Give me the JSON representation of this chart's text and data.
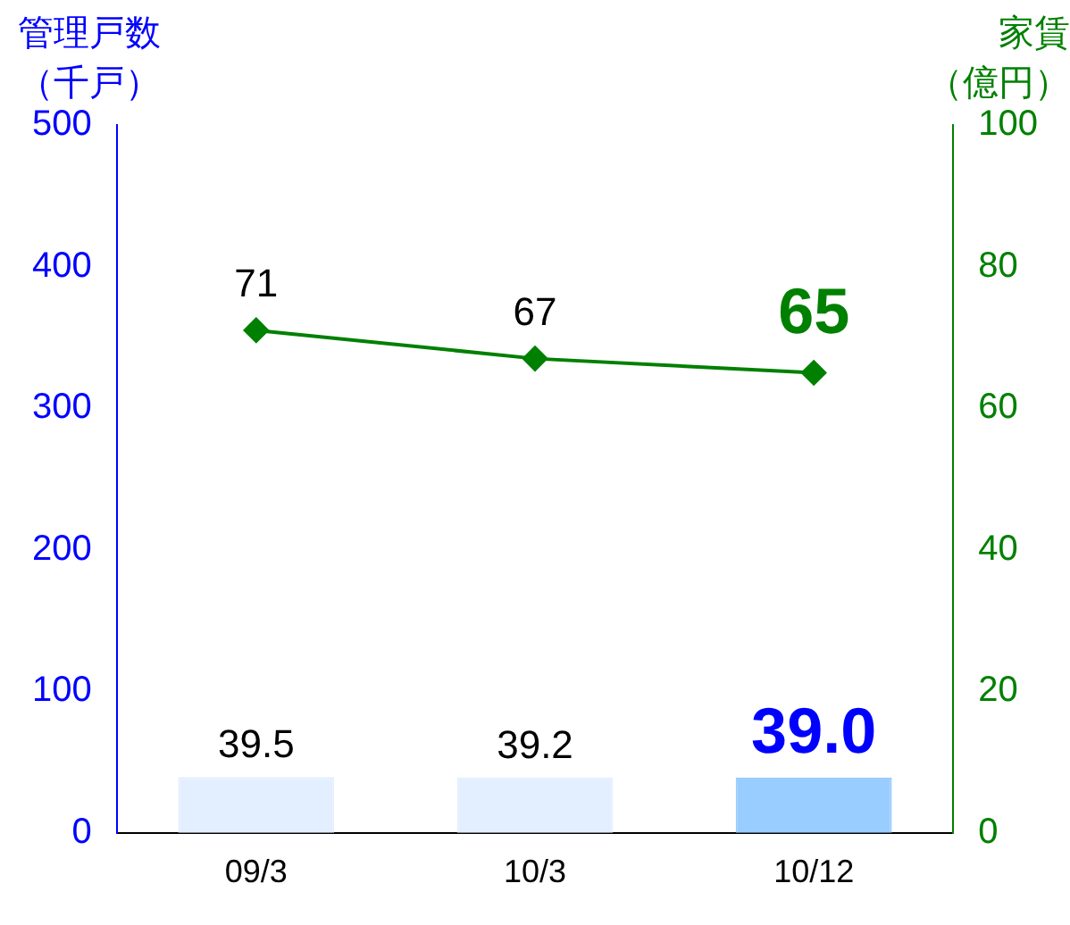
{
  "chart_data": {
    "type": "bar",
    "ylabel": "管理戸数（千戸）",
    "y2label": "家賃（億円）",
    "categories": [
      "09/3",
      "10/3",
      "10/12"
    ],
    "series": [
      {
        "colors": [
          "#e3efff",
          "#e3efff",
          "#99ccff"
        ],
        "values": [
          39.5,
          39.2,
          39.0
        ],
        "value_labels": [
          "39.5",
          "39.2",
          "39.0"
        ]
      },
      {
        "type": "line",
        "axis": "y2",
        "color": "#008000",
        "values": [
          71,
          67,
          65
        ],
        "value_labels": [
          "71",
          "67",
          "65"
        ]
      }
    ],
    "ylim": [
      0,
      500
    ],
    "yticks": [
      0,
      100,
      200,
      300,
      400,
      500
    ],
    "y2lim": [
      0,
      100
    ],
    "y2ticks": [
      0,
      20,
      40,
      60,
      80,
      100
    ],
    "grid": false,
    "legend": false,
    "marker": "diamond",
    "line_style": "solid"
  }
}
